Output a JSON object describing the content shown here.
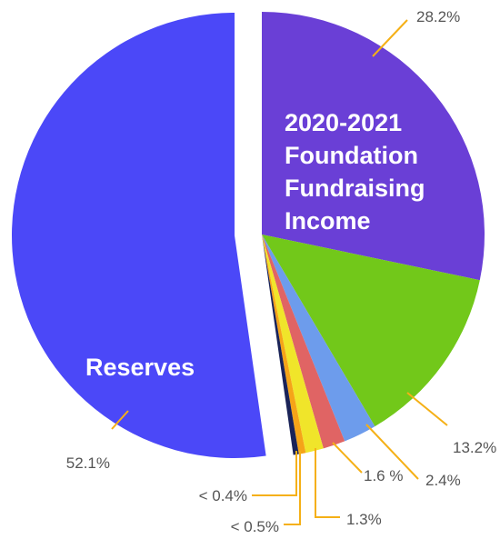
{
  "chart_data": {
    "type": "pie",
    "title": "2020-2021 Foundation Fundraising Income",
    "title_lines": [
      "2020-2021",
      "Foundation",
      "Fundraising",
      "Income"
    ],
    "slices": [
      {
        "label": "",
        "value": 28.2,
        "value_label": "28.2%",
        "color": "#6a3fd6",
        "exploded": false
      },
      {
        "label": "",
        "value": 13.2,
        "value_label": "13.2%",
        "color": "#72c81a",
        "exploded": false
      },
      {
        "label": "",
        "value": 2.4,
        "value_label": "2.4%",
        "color": "#6d9cec",
        "exploded": false
      },
      {
        "label": "",
        "value": 1.6,
        "value_label": "1.6 %",
        "color": "#e06464",
        "exploded": false
      },
      {
        "label": "",
        "value": 1.3,
        "value_label": "1.3%",
        "color": "#f0e52a",
        "exploded": false
      },
      {
        "label": "",
        "value": 0.5,
        "value_label": "< 0.5%",
        "color": "#f5a418",
        "exploded": false
      },
      {
        "label": "",
        "value": 0.4,
        "value_label": "< 0.4%",
        "color": "#1a2358",
        "exploded": false
      },
      {
        "label": "Reserves",
        "value": 52.1,
        "value_label": "52.1%",
        "color": "#4b48f8",
        "exploded": true
      }
    ],
    "leader_color": "#f5b016",
    "legend": "none"
  }
}
